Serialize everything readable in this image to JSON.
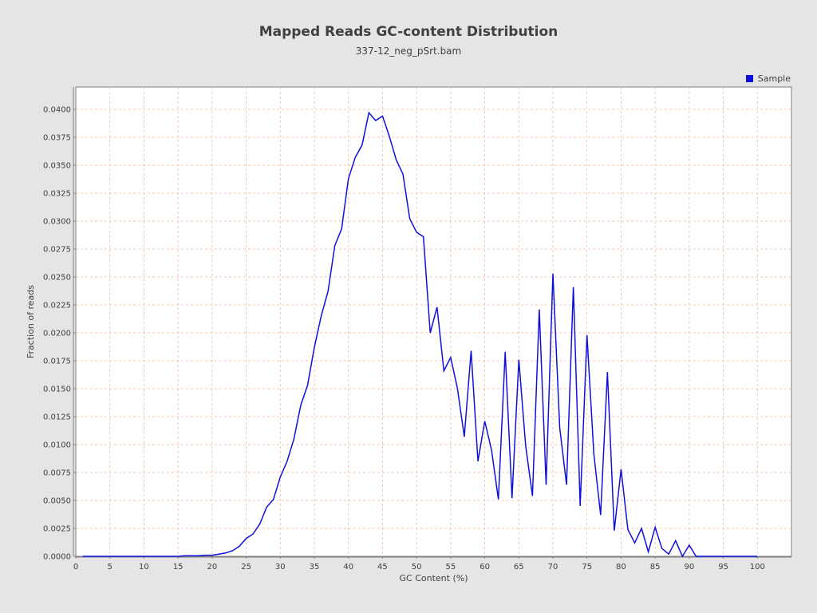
{
  "chart_data": {
    "type": "line",
    "title": "Mapped Reads GC-content Distribution",
    "subtitle": "337-12_neg_pSrt.bam",
    "xlabel": "GC Content (%)",
    "ylabel": "Fraction of reads",
    "xlim": [
      0,
      105
    ],
    "ylim": [
      0,
      0.042
    ],
    "xticks": [
      "0",
      "5",
      "10",
      "15",
      "20",
      "25",
      "30",
      "35",
      "40",
      "45",
      "50",
      "55",
      "60",
      "65",
      "70",
      "75",
      "80",
      "85",
      "90",
      "95",
      "100"
    ],
    "yticks": [
      "0.0000",
      "0.0025",
      "0.0050",
      "0.0075",
      "0.0100",
      "0.0125",
      "0.0150",
      "0.0175",
      "0.0200",
      "0.0225",
      "0.0250",
      "0.0275",
      "0.0300",
      "0.0325",
      "0.0350",
      "0.0375",
      "0.0400"
    ],
    "grid": true,
    "legend_position": "top-right",
    "colors": {
      "series": "#1010dd",
      "grid": "#f2b899",
      "plot_bg": "#ffffff",
      "page_bg": "#e5e5e5"
    },
    "series": [
      {
        "name": "Sample",
        "x": [
          1,
          2,
          3,
          4,
          5,
          6,
          7,
          8,
          9,
          10,
          11,
          12,
          13,
          14,
          15,
          16,
          17,
          18,
          19,
          20,
          21,
          22,
          23,
          24,
          25,
          26,
          27,
          28,
          29,
          30,
          31,
          32,
          33,
          34,
          35,
          36,
          37,
          38,
          39,
          40,
          41,
          42,
          43,
          44,
          45,
          46,
          47,
          48,
          49,
          50,
          51,
          52,
          53,
          54,
          55,
          56,
          57,
          58,
          59,
          60,
          61,
          62,
          63,
          64,
          65,
          66,
          67,
          68,
          69,
          70,
          71,
          72,
          73,
          74,
          75,
          76,
          77,
          78,
          79,
          80,
          81,
          82,
          83,
          84,
          85,
          86,
          87,
          88,
          89,
          90,
          91,
          92,
          93,
          94,
          95,
          96,
          97,
          98,
          99,
          100
        ],
        "values": [
          0,
          0,
          0,
          0,
          0,
          0,
          0,
          0,
          0,
          0,
          0,
          0,
          0,
          0,
          0,
          5e-05,
          5e-05,
          5e-05,
          0.0001,
          0.0001,
          0.0002,
          0.0003,
          0.0005,
          0.0009,
          0.0016,
          0.002,
          0.0029,
          0.0044,
          0.0051,
          0.0071,
          0.0085,
          0.0105,
          0.0135,
          0.0153,
          0.0187,
          0.0215,
          0.0237,
          0.0278,
          0.0293,
          0.0338,
          0.0357,
          0.0368,
          0.0397,
          0.039,
          0.0394,
          0.0376,
          0.0355,
          0.0342,
          0.0302,
          0.029,
          0.0286,
          0.02,
          0.0223,
          0.0166,
          0.0178,
          0.015,
          0.0107,
          0.0184,
          0.0085,
          0.0121,
          0.0095,
          0.0051,
          0.0183,
          0.0052,
          0.0176,
          0.0099,
          0.0054,
          0.0221,
          0.0064,
          0.0253,
          0.0115,
          0.0064,
          0.0241,
          0.0045,
          0.0198,
          0.0092,
          0.0037,
          0.0165,
          0.0023,
          0.0078,
          0.0024,
          0.0012,
          0.0025,
          0.0004,
          0.0026,
          0.0007,
          0.0002,
          0.0014,
          0,
          0.001,
          0,
          0,
          0,
          0,
          0,
          0,
          0,
          0,
          0,
          0
        ]
      }
    ]
  }
}
